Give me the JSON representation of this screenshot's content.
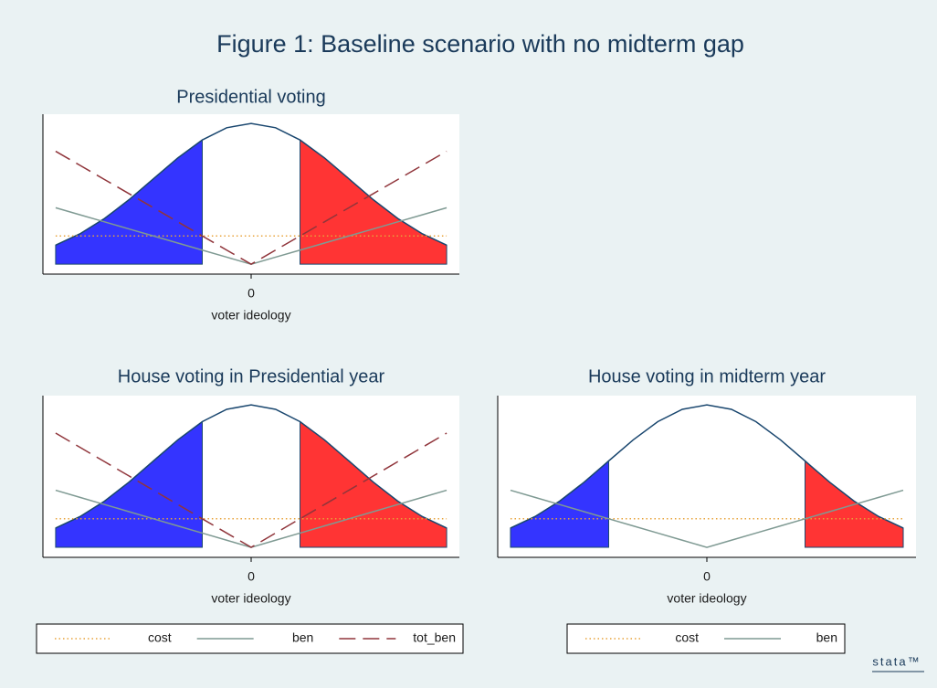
{
  "title": "Figure 1: Baseline scenario with no midterm gap",
  "logo": "stata™",
  "chart_data": [
    {
      "type": "line",
      "title": "Presidential voting",
      "xlabel": "voter ideology",
      "xlim": [
        -2.13,
        2.13
      ],
      "ylim": [
        -0.028,
        0.425
      ],
      "xticks": [
        0
      ],
      "legend": false,
      "x": [
        -2,
        -1.75,
        -1.5,
        -1.25,
        -1,
        -0.75,
        -0.5,
        -0.25,
        0,
        0.25,
        0.5,
        0.75,
        1,
        1.25,
        1.5,
        1.75,
        2
      ],
      "density": {
        "color": "#1a476f",
        "values": [
          0.054,
          0.0863,
          0.1295,
          0.1826,
          0.242,
          0.3011,
          0.3521,
          0.3867,
          0.3989,
          0.3867,
          0.3521,
          0.3011,
          0.242,
          0.1826,
          0.1295,
          0.0863,
          0.054
        ]
      },
      "areas": [
        {
          "color": "#3434ff",
          "from": -2,
          "to": -0.5
        },
        {
          "color": "#ff3434",
          "from": 0.5,
          "to": 2
        }
      ],
      "series": [
        {
          "name": "cost",
          "color": "#e8a33a",
          "style": "dotted",
          "values": [
            0.08,
            0.08,
            0.08,
            0.08,
            0.08,
            0.08,
            0.08,
            0.08,
            0.08,
            0.08,
            0.08,
            0.08,
            0.08,
            0.08,
            0.08,
            0.08,
            0.08
          ]
        },
        {
          "name": "ben",
          "color": "#7f9a93",
          "style": "solid",
          "values": [
            0.16,
            0.14,
            0.12,
            0.1,
            0.08,
            0.06,
            0.04,
            0.02,
            0,
            0.02,
            0.04,
            0.06,
            0.08,
            0.1,
            0.12,
            0.14,
            0.16
          ]
        },
        {
          "name": "tot_ben",
          "color": "#90353b",
          "style": "dashed",
          "values": [
            0.32,
            0.28,
            0.24,
            0.2,
            0.16,
            0.12,
            0.08,
            0.04,
            0,
            0.04,
            0.08,
            0.12,
            0.16,
            0.2,
            0.24,
            0.28,
            0.32
          ]
        }
      ]
    },
    {
      "type": "line",
      "title": "House voting in Presidential year",
      "xlabel": "voter ideology",
      "xlim": [
        -2.13,
        2.13
      ],
      "ylim": [
        -0.028,
        0.425
      ],
      "xticks": [
        0
      ],
      "legend": true,
      "x": [
        -2,
        -1.75,
        -1.5,
        -1.25,
        -1,
        -0.75,
        -0.5,
        -0.25,
        0,
        0.25,
        0.5,
        0.75,
        1,
        1.25,
        1.5,
        1.75,
        2
      ],
      "density": {
        "color": "#1a476f",
        "values": [
          0.054,
          0.0863,
          0.1295,
          0.1826,
          0.242,
          0.3011,
          0.3521,
          0.3867,
          0.3989,
          0.3867,
          0.3521,
          0.3011,
          0.242,
          0.1826,
          0.1295,
          0.0863,
          0.054
        ]
      },
      "areas": [
        {
          "color": "#3434ff",
          "from": -2,
          "to": -0.5
        },
        {
          "color": "#ff3434",
          "from": 0.5,
          "to": 2
        }
      ],
      "series": [
        {
          "name": "cost",
          "color": "#e8a33a",
          "style": "dotted",
          "values": [
            0.08,
            0.08,
            0.08,
            0.08,
            0.08,
            0.08,
            0.08,
            0.08,
            0.08,
            0.08,
            0.08,
            0.08,
            0.08,
            0.08,
            0.08,
            0.08,
            0.08
          ]
        },
        {
          "name": "ben",
          "color": "#7f9a93",
          "style": "solid",
          "values": [
            0.16,
            0.14,
            0.12,
            0.1,
            0.08,
            0.06,
            0.04,
            0.02,
            0,
            0.02,
            0.04,
            0.06,
            0.08,
            0.1,
            0.12,
            0.14,
            0.16
          ]
        },
        {
          "name": "tot_ben",
          "color": "#90353b",
          "style": "dashed",
          "values": [
            0.32,
            0.28,
            0.24,
            0.2,
            0.16,
            0.12,
            0.08,
            0.04,
            0,
            0.04,
            0.08,
            0.12,
            0.16,
            0.2,
            0.24,
            0.28,
            0.32
          ]
        }
      ]
    },
    {
      "type": "line",
      "title": "House voting in midterm year",
      "xlabel": "voter ideology",
      "xlim": [
        -2.13,
        2.13
      ],
      "ylim": [
        -0.028,
        0.425
      ],
      "xticks": [
        0
      ],
      "legend": true,
      "x": [
        -2,
        -1.75,
        -1.5,
        -1.25,
        -1,
        -0.75,
        -0.5,
        -0.25,
        0,
        0.25,
        0.5,
        0.75,
        1,
        1.25,
        1.5,
        1.75,
        2
      ],
      "density": {
        "color": "#1a476f",
        "values": [
          0.054,
          0.0863,
          0.1295,
          0.1826,
          0.242,
          0.3011,
          0.3521,
          0.3867,
          0.3989,
          0.3867,
          0.3521,
          0.3011,
          0.242,
          0.1826,
          0.1295,
          0.0863,
          0.054
        ]
      },
      "areas": [
        {
          "color": "#3434ff",
          "from": -2,
          "to": -1
        },
        {
          "color": "#ff3434",
          "from": 1,
          "to": 2
        }
      ],
      "series": [
        {
          "name": "cost",
          "color": "#e8a33a",
          "style": "dotted",
          "values": [
            0.08,
            0.08,
            0.08,
            0.08,
            0.08,
            0.08,
            0.08,
            0.08,
            0.08,
            0.08,
            0.08,
            0.08,
            0.08,
            0.08,
            0.08,
            0.08,
            0.08
          ]
        },
        {
          "name": "ben",
          "color": "#7f9a93",
          "style": "solid",
          "values": [
            0.16,
            0.14,
            0.12,
            0.1,
            0.08,
            0.06,
            0.04,
            0.02,
            0,
            0.02,
            0.04,
            0.06,
            0.08,
            0.1,
            0.12,
            0.14,
            0.16
          ]
        }
      ]
    }
  ]
}
